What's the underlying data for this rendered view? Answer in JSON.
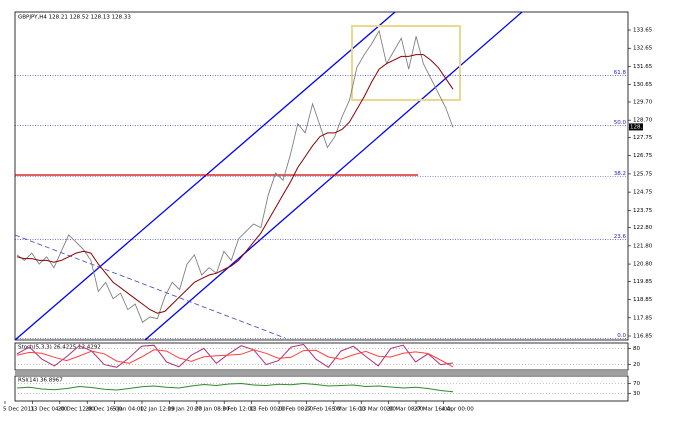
{
  "chart_data": [
    {
      "type": "line",
      "title": "GBPJPY,H4 128.21 128.52 128.13 128.33",
      "ylim": [
        116.63,
        134.64
      ],
      "yticks": [
        133.65,
        132.65,
        131.65,
        130.65,
        {
          "value": 129.7,
          "label": "129.70"
        },
        {
          "value": 128.7,
          "label": "128.70"
        },
        127.75,
        126.75,
        125.75,
        124.75,
        123.75,
        {
          "value": 122.8,
          "label": "122.80"
        },
        {
          "value": 121.8,
          "label": "121.80"
        },
        {
          "value": 120.8,
          "label": "120.80"
        },
        119.85,
        118.85,
        117.85,
        116.85
      ],
      "x_labels": [
        "5 Dec 2011",
        "13 Dec 04:00",
        "20 Dec 12:00",
        "28 Dec 16:00",
        "5 Jan 04:00",
        "12 Jan 12:00",
        "19 Jan 20:00",
        "27 Jan 08:00",
        "3 Feb 12:00",
        "13 Feb 00:00",
        "20 Feb 08:00",
        "27 Feb 16:00",
        "5 Mar 16:00",
        "13 Mar 00:00",
        "20 Mar 08:00",
        "27 Mar 16:00",
        "4 Apr 00:00"
      ],
      "fib_levels": [
        {
          "value": 131.15,
          "label": "61.8"
        },
        {
          "value": 128.4,
          "label": "50.0"
        },
        {
          "value": 125.6,
          "label": "38.2"
        },
        {
          "value": 122.15,
          "label": "23.6"
        },
        {
          "value": 116.7,
          "label": "0.0"
        }
      ],
      "last_price": 128.33,
      "series": [
        {
          "color": "#808080",
          "values": [
            121.3,
            121.0,
            121.4,
            120.8,
            121.2,
            120.6,
            121.5,
            122.4,
            122.0,
            121.6,
            121.0,
            119.3,
            119.8,
            118.9,
            119.2,
            118.3,
            118.6,
            117.6,
            117.9,
            117.8,
            119.0,
            119.8,
            119.4,
            120.8,
            121.3,
            120.2,
            120.6,
            120.3,
            121.5,
            121.0,
            122.2,
            122.6,
            123.0,
            122.8,
            124.6,
            125.8,
            125.4,
            126.8,
            128.5,
            128.0,
            129.6,
            128.4,
            127.2,
            127.8,
            128.9,
            129.8,
            131.6,
            132.3,
            132.9,
            133.6,
            131.8,
            132.5,
            133.2,
            131.5,
            133.3,
            131.8,
            131.0,
            130.2,
            129.4,
            128.3
          ]
        },
        {
          "color": "#8b0000",
          "values": [
            121.2,
            121.1,
            121.1,
            121.0,
            121.0,
            120.9,
            121.0,
            121.2,
            121.4,
            121.5,
            121.4,
            120.8,
            120.3,
            119.8,
            119.5,
            119.2,
            118.9,
            118.6,
            118.3,
            118.1,
            118.2,
            118.6,
            119.0,
            119.4,
            119.8,
            120.0,
            120.2,
            120.3,
            120.5,
            120.7,
            121.0,
            121.5,
            122.0,
            122.5,
            123.2,
            123.9,
            124.6,
            125.3,
            126.1,
            126.7,
            127.3,
            127.8,
            128.0,
            128.0,
            128.2,
            128.6,
            129.3,
            130.0,
            130.8,
            131.5,
            131.8,
            132.0,
            132.2,
            132.2,
            132.3,
            132.3,
            132.0,
            131.6,
            131.0,
            130.4
          ]
        }
      ]
    },
    {
      "type": "line",
      "title": "Stoch(5,3,3) 26.4225 12.4292",
      "ylim": [
        0,
        100
      ],
      "yticks": [
        20,
        80
      ],
      "series": [
        {
          "color": "#b0307a",
          "values": [
            60,
            85,
            40,
            15,
            50,
            90,
            70,
            20,
            10,
            45,
            88,
            92,
            30,
            12,
            55,
            80,
            25,
            60,
            90,
            75,
            20,
            35,
            85,
            95,
            40,
            10,
            70,
            88,
            50,
            15,
            80,
            92,
            30,
            60,
            20,
            26
          ]
        },
        {
          "color": "#ff4040",
          "values": [
            55,
            65,
            62,
            47,
            35,
            52,
            70,
            60,
            33,
            25,
            48,
            75,
            70,
            45,
            32,
            49,
            53,
            55,
            58,
            75,
            62,
            43,
            47,
            72,
            73,
            48,
            40,
            56,
            69,
            51,
            48,
            62,
            67,
            61,
            37,
            12
          ]
        }
      ]
    },
    {
      "type": "line",
      "title": "RSI(14) 36.8967",
      "ylim": [
        0,
        100
      ],
      "yticks": [
        30,
        70
      ],
      "series": [
        {
          "color": "#2e8b2e",
          "values": [
            52,
            55,
            48,
            45,
            50,
            58,
            54,
            47,
            44,
            50,
            57,
            60,
            55,
            52,
            60,
            66,
            62,
            68,
            70,
            64,
            62,
            67,
            65,
            70,
            66,
            60,
            62,
            64,
            58,
            60,
            56,
            52,
            55,
            50,
            42,
            37
          ]
        }
      ]
    }
  ]
}
